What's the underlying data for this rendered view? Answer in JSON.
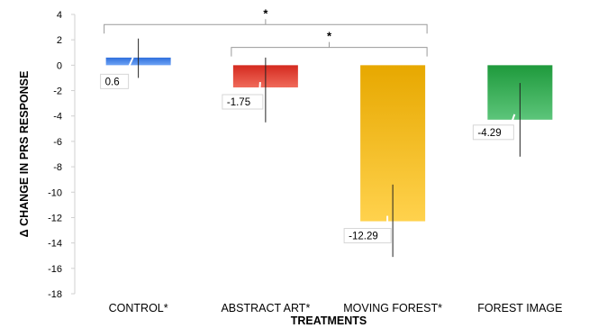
{
  "chart_data": {
    "type": "bar",
    "categories": [
      "CONTROL*",
      "ABSTRACT ART*",
      "MOVING FOREST*",
      "FOREST IMAGE"
    ],
    "values": [
      0.6,
      -1.75,
      -12.29,
      -4.29
    ],
    "value_labels": [
      "0.6",
      "-1.75",
      "-12.29",
      "-4.29"
    ],
    "error_bars": [
      {
        "low": -1.0,
        "high": 2.1
      },
      {
        "low": -4.5,
        "high": 0.6
      },
      {
        "low": -15.1,
        "high": -9.4
      },
      {
        "low": -7.2,
        "high": -1.4
      }
    ],
    "bar_colors": [
      {
        "top": "#2f6fdc",
        "bottom": "#6ea3f5"
      },
      {
        "top": "#d42a1f",
        "bottom": "#f06a5a"
      },
      {
        "top": "#e7a800",
        "bottom": "#ffd24d"
      },
      {
        "top": "#1f9a3c",
        "bottom": "#5cc57a"
      }
    ],
    "xlabel": "TREATMENTS",
    "ylabel": "Δ CHANGE IN PRS RESPONSE",
    "ylim": [
      -18,
      4
    ],
    "yticks": [
      4,
      2,
      0,
      -2,
      -4,
      -6,
      -8,
      -10,
      -12,
      -14,
      -16,
      -18
    ],
    "grid": false,
    "significance": [
      {
        "from": 0,
        "to": 2,
        "label": "*",
        "y": 3.2
      },
      {
        "from": 1,
        "to": 2,
        "label": "*",
        "y": 1.4
      }
    ]
  }
}
